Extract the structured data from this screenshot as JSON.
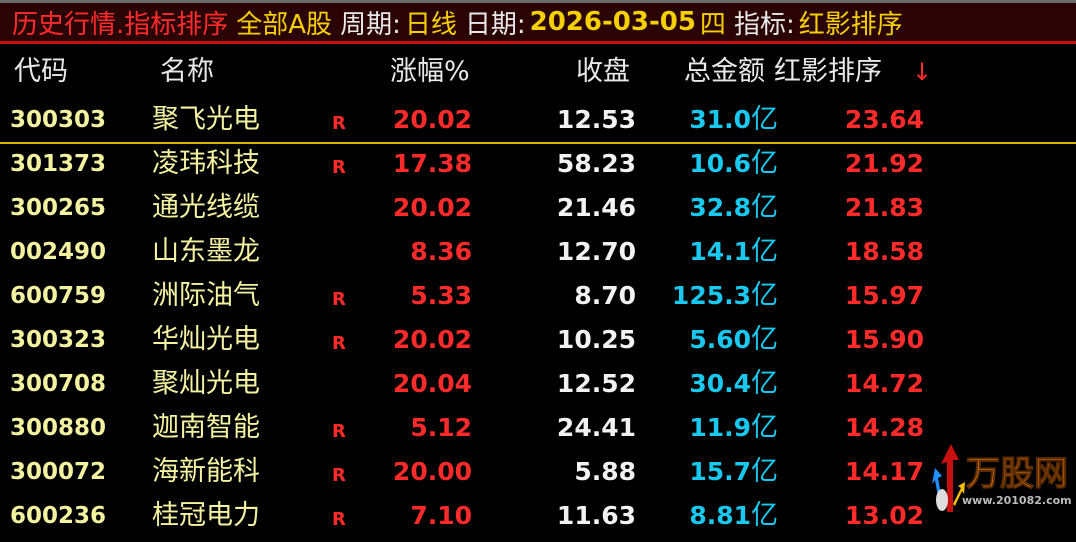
{
  "title": {
    "module": "历史行情.指标排序",
    "market": "全部A股",
    "period_label": "周期:",
    "period": "日线",
    "date_label": "日期:",
    "date": "2026-03-05",
    "weekday": "四",
    "indicator_label": "指标:",
    "indicator": "红影排序"
  },
  "columns": {
    "code": "代码",
    "name": "名称",
    "change": "涨幅%",
    "close": "收盘",
    "amount": "总金额",
    "indicator": "红影排序",
    "sort_arrow": "↓"
  },
  "unit": "亿",
  "colors": {
    "up": "#ff2b2b",
    "amount": "#19c8ee",
    "code": "#f2f2a0",
    "title_bg": "#2a0404"
  },
  "rows": [
    {
      "code": "300303",
      "name": "聚飞光电",
      "flag": "R",
      "change": "20.02",
      "close": "12.53",
      "amount": "31.0",
      "score": "23.64",
      "selected": true
    },
    {
      "code": "301373",
      "name": "凌玮科技",
      "flag": "R",
      "change": "17.38",
      "close": "58.23",
      "amount": "10.6",
      "score": "21.92"
    },
    {
      "code": "300265",
      "name": "通光线缆",
      "flag": "",
      "change": "20.02",
      "close": "21.46",
      "amount": "32.8",
      "score": "21.83"
    },
    {
      "code": "002490",
      "name": "山东墨龙",
      "flag": "",
      "change": "8.36",
      "close": "12.70",
      "amount": "14.1",
      "score": "18.58"
    },
    {
      "code": "600759",
      "name": "洲际油气",
      "flag": "R",
      "change": "5.33",
      "close": "8.70",
      "amount": "125.3",
      "score": "15.97"
    },
    {
      "code": "300323",
      "name": "华灿光电",
      "flag": "R",
      "change": "20.02",
      "close": "10.25",
      "amount": "5.60",
      "score": "15.90"
    },
    {
      "code": "300708",
      "name": "聚灿光电",
      "flag": "",
      "change": "20.04",
      "close": "12.52",
      "amount": "30.4",
      "score": "14.72"
    },
    {
      "code": "300880",
      "name": "迦南智能",
      "flag": "R",
      "change": "5.12",
      "close": "24.41",
      "amount": "11.9",
      "score": "14.28"
    },
    {
      "code": "300072",
      "name": "海新能科",
      "flag": "R",
      "change": "20.00",
      "close": "5.88",
      "amount": "15.7",
      "score": "14.17"
    },
    {
      "code": "600236",
      "name": "桂冠电力",
      "flag": "R",
      "change": "7.10",
      "close": "11.63",
      "amount": "8.81",
      "score": "13.02"
    }
  ],
  "watermark": {
    "brand": "万股网",
    "url": "www.201082.com"
  }
}
